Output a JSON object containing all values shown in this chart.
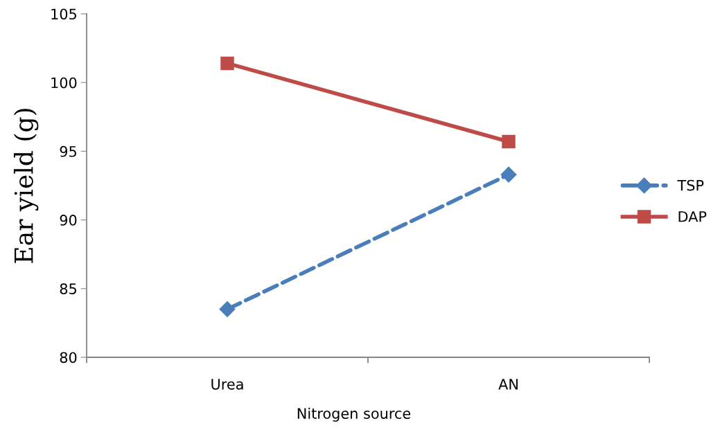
{
  "chart_data": {
    "type": "line",
    "xlabel": "Nitrogen source",
    "ylabel": "Ear yield (g)",
    "categories": [
      "Urea",
      "AN"
    ],
    "series": [
      {
        "name": "TSP",
        "color": "#4a7ebb",
        "values": [
          83.5,
          93.3
        ],
        "marker": "diamond",
        "line_style": "dashed"
      },
      {
        "name": "DAP",
        "color": "#be4b48",
        "values": [
          101.4,
          95.7
        ],
        "marker": "square",
        "line_style": "solid"
      }
    ],
    "ylim": [
      80,
      105
    ],
    "yticks": [
      80,
      85,
      90,
      95,
      100,
      105
    ],
    "grid": false,
    "legend": "right"
  }
}
